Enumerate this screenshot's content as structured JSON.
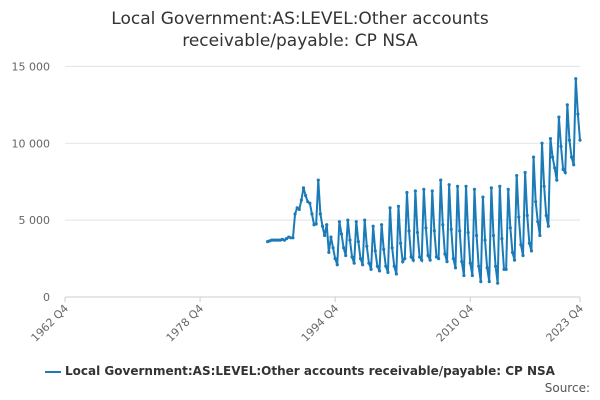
{
  "chart_data": {
    "type": "line",
    "title": "Local Government:AS:LEVEL:Other accounts receivable/payable: CP NSA",
    "source": "Source:",
    "categories": [
      "1962 Q4",
      null,
      null,
      null,
      null,
      null,
      null,
      null,
      null,
      null,
      null,
      null,
      null,
      null,
      null,
      null,
      null,
      null,
      null,
      null,
      null,
      null,
      null,
      null,
      null,
      null,
      null,
      null,
      null,
      null,
      null,
      null,
      null,
      null,
      null,
      null,
      null,
      null,
      null,
      null,
      null,
      null,
      null,
      null,
      null,
      null,
      null,
      null,
      null,
      null,
      null,
      null,
      null,
      null,
      null,
      null,
      null,
      null,
      null,
      null,
      null,
      null,
      null,
      null,
      "1978 Q4",
      null,
      null,
      null,
      null,
      null,
      null,
      null,
      null,
      null,
      null,
      null,
      null,
      null,
      null,
      null,
      null,
      null,
      null,
      null,
      null,
      null,
      null,
      null,
      null,
      null,
      null,
      null,
      null,
      null,
      null,
      null,
      null,
      null,
      null,
      null,
      null,
      null,
      null,
      null,
      null,
      null,
      null,
      null,
      null,
      null,
      null,
      null,
      null,
      null,
      null,
      null,
      null,
      null,
      null,
      null,
      null,
      null,
      null,
      null,
      null,
      null,
      null,
      null,
      "1994 Q4",
      null,
      null,
      null,
      null,
      null,
      null,
      null,
      null,
      null,
      null,
      null,
      null,
      null,
      null,
      null,
      null,
      null,
      null,
      null,
      null,
      null,
      null,
      null,
      null,
      null,
      null,
      null,
      null,
      null,
      null,
      null,
      null,
      null,
      null,
      null,
      null,
      null,
      null,
      null,
      null,
      null,
      null,
      null,
      null,
      null,
      null,
      null,
      null,
      null,
      null,
      null,
      null,
      null,
      null,
      null,
      null,
      null,
      null,
      null,
      null,
      null,
      null,
      null,
      "2010 Q4",
      null,
      null,
      null,
      null,
      null,
      null,
      null,
      null,
      null,
      null,
      null,
      null,
      null,
      null,
      null,
      null,
      null,
      null,
      null,
      null,
      null,
      null,
      null,
      null,
      null,
      null,
      null,
      null,
      null,
      null,
      null,
      null,
      null,
      null,
      null,
      null,
      null,
      null,
      null,
      null,
      null,
      null,
      null,
      null,
      null,
      null,
      null,
      null,
      null,
      null,
      null,
      "2023 Q4"
    ],
    "series": [
      {
        "name": "Local Government:AS:LEVEL:Other accounts receivable/payable: CP NSA",
        "color": "#1a7bb8",
        "values": [
          null,
          null,
          null,
          null,
          null,
          null,
          null,
          null,
          null,
          null,
          null,
          null,
          null,
          null,
          null,
          null,
          null,
          null,
          null,
          null,
          null,
          null,
          null,
          null,
          null,
          null,
          null,
          null,
          null,
          null,
          null,
          null,
          null,
          null,
          null,
          null,
          null,
          null,
          null,
          null,
          null,
          null,
          null,
          null,
          null,
          null,
          null,
          null,
          null,
          null,
          null,
          null,
          null,
          null,
          null,
          null,
          null,
          null,
          null,
          null,
          null,
          null,
          null,
          null,
          null,
          null,
          null,
          null,
          null,
          null,
          null,
          null,
          null,
          null,
          null,
          null,
          null,
          null,
          null,
          null,
          null,
          null,
          null,
          null,
          null,
          null,
          null,
          null,
          null,
          null,
          null,
          null,
          null,
          null,
          null,
          null,
          3600,
          3650,
          3700,
          3700,
          3700,
          3700,
          3700,
          3750,
          3700,
          3800,
          3900,
          3850,
          3850,
          5400,
          5800,
          5700,
          6300,
          7100,
          6600,
          6200,
          6100,
          5400,
          4700,
          4750,
          7600,
          5400,
          4600,
          4000,
          4700,
          2900,
          3900,
          3200,
          2500,
          2100,
          4900,
          4100,
          3200,
          2700,
          5000,
          3700,
          2600,
          2200,
          4900,
          3600,
          2500,
          2100,
          5000,
          3300,
          2200,
          1800,
          4600,
          3000,
          2000,
          1700,
          4700,
          3100,
          2000,
          1600,
          5800,
          3200,
          2000,
          1500,
          5900,
          3500,
          2300,
          2500,
          6800,
          4300,
          2600,
          2400,
          6900,
          4200,
          2600,
          2400,
          7000,
          4500,
          2700,
          2400,
          6900,
          4300,
          2600,
          2500,
          7600,
          4700,
          2800,
          2300,
          7300,
          4400,
          2500,
          1900,
          7200,
          4300,
          2300,
          1400,
          7200,
          4200,
          2200,
          1400,
          7000,
          4000,
          2000,
          1000,
          6500,
          3700,
          1900,
          1000,
          7100,
          4000,
          2000,
          900,
          7200,
          3800,
          1800,
          1800,
          7000,
          4500,
          2900,
          2400,
          7900,
          5200,
          3400,
          2700,
          8100,
          5300,
          3500,
          3000,
          9100,
          6200,
          4900,
          4000,
          10000,
          7200,
          5300,
          4600,
          10300,
          9100,
          8400,
          7600,
          11700,
          9800,
          8300,
          8100,
          12500,
          10200,
          9100,
          8600,
          14200,
          11900,
          10200
        ]
      }
    ],
    "ylim": [
      0,
      16000
    ],
    "yticks": [
      0,
      {
        "value": 5000,
        "label": "5 000"
      },
      {
        "value": 10000,
        "label": "10 000"
      },
      {
        "value": 15000,
        "label": "15 000"
      }
    ],
    "grid": true
  }
}
